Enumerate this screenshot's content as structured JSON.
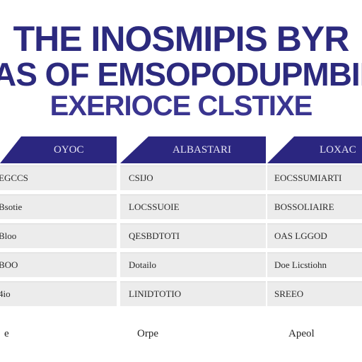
{
  "title": {
    "line1": "THE INOSMIPIS BYR",
    "line2": "AS OF EMSOPODUPMBIN",
    "line3": "EXERIOCE CLSTIXE"
  },
  "table": {
    "columns": [
      {
        "header": "OYOC",
        "cells": [
          "EGCCS",
          "Bsotie",
          "Bloo",
          "BOO",
          "4io"
        ],
        "footer": "e"
      },
      {
        "header": "ALBASTARI",
        "cells": [
          "CSIJO",
          "LOCSSUOIE",
          "QESBDTOTI",
          "Dotailo",
          "LINIDTOTIO"
        ],
        "footer": "Orpe"
      },
      {
        "header": "LOXAC",
        "cells": [
          "EOCSSUMIARTI",
          "BOSSOLIAIRE",
          "OAS LGGOD",
          "Doe Licstiohn",
          "SREEO"
        ],
        "footer": "Apeol"
      }
    ]
  },
  "colors": {
    "header_bg": "#2b2680",
    "title_text": "#2c2a7e",
    "row_bg": "#ececec"
  }
}
